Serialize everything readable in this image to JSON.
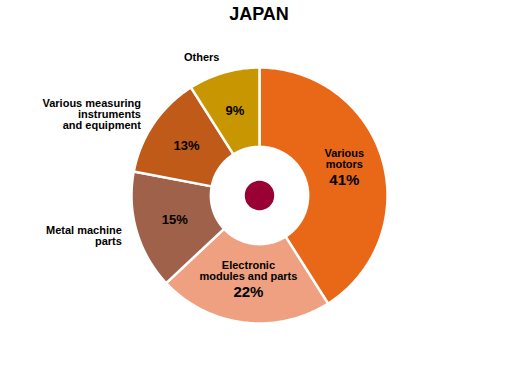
{
  "chart_data": {
    "type": "pie",
    "title": "JAPAN",
    "categories": [
      "Various\nmotors",
      "Electronic\nmodules and parts",
      "Metal machine\nparts",
      "Various measuring\ninstruments\nand equipment",
      "Others"
    ],
    "values": [
      41,
      22,
      15,
      13,
      9
    ],
    "value_labels": [
      "41%",
      "22%",
      "15%",
      "13%",
      "9%"
    ],
    "colors": [
      "#E96818",
      "#EFA080",
      "#A0614A",
      "#C05A18",
      "#C89600"
    ],
    "data_labels": true
  }
}
